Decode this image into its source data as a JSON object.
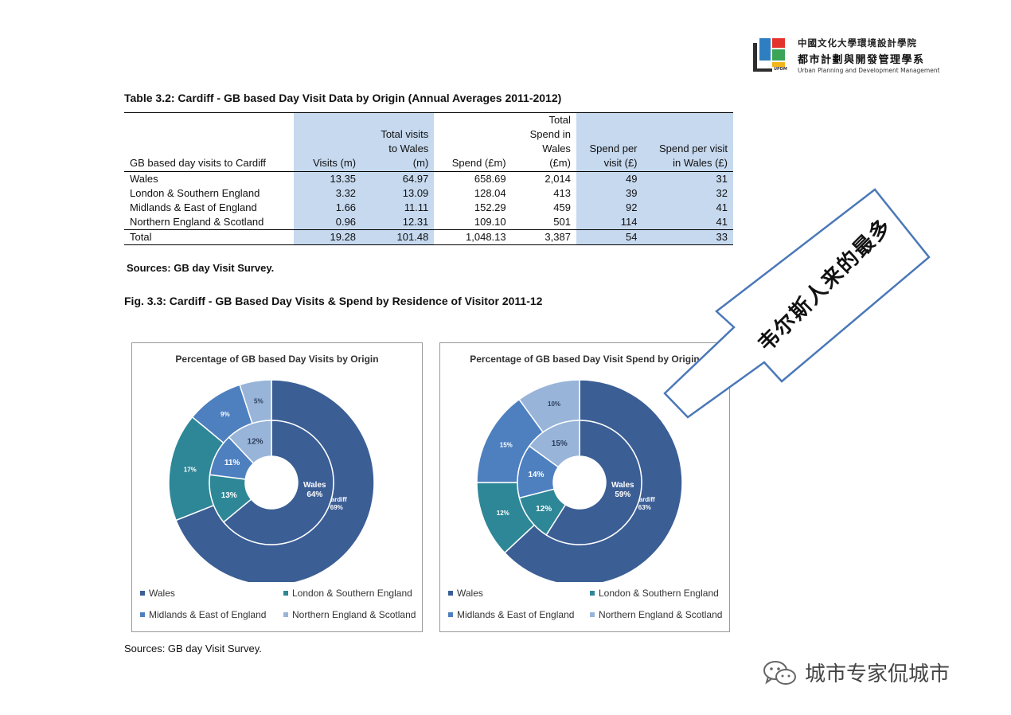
{
  "logo": {
    "line1": "中國文化大學環境設計學院",
    "line2": "都市計劃與開發管理學系",
    "line3": "Urban Planning and Development Management",
    "abbr": "UPDM"
  },
  "table": {
    "title": "Table 3.2: Cardiff - GB based Day Visit Data by Origin (Annual Averages 2011-2012)",
    "headers": [
      [
        "GB based day visits to Cardiff"
      ],
      [
        "Visits (m)"
      ],
      [
        "Total visits",
        "to Wales",
        "(m)"
      ],
      [
        "Spend (£m)"
      ],
      [
        "Total",
        "Spend in",
        "Wales",
        "(£m)"
      ],
      [
        "Spend per",
        "visit (£)"
      ],
      [
        "Spend per visit",
        "in Wales (£)"
      ]
    ],
    "rows": [
      [
        "Wales",
        "13.35",
        "64.97",
        "658.69",
        "2,014",
        "49",
        "31"
      ],
      [
        "London & Southern England",
        "3.32",
        "13.09",
        "128.04",
        "413",
        "39",
        "32"
      ],
      [
        "Midlands & East of England",
        "1.66",
        "11.11",
        "152.29",
        "459",
        "92",
        "41"
      ],
      [
        "Northern England & Scotland",
        "0.96",
        "12.31",
        "109.10",
        "501",
        "114",
        "41"
      ]
    ],
    "total": [
      "Total",
      "19.28",
      "101.48",
      "1,048.13",
      "3,387",
      "54",
      "33"
    ],
    "sources": "Sources: GB day Visit Survey."
  },
  "figure": {
    "title": "Fig. 3.3: Cardiff - GB Based Day Visits & Spend by Residence of Visitor 2011-12",
    "sources": "Sources: GB day Visit Survey."
  },
  "colors": {
    "wales": "#3b5e95",
    "london": "#2e8797",
    "midlands": "#4e80c0",
    "northern": "#98b4d9",
    "table_highlight": "#c6d9ef",
    "callout_border": "#4a78b8"
  },
  "chart_data": [
    {
      "type": "pie",
      "title": "Percentage of GB based Day Visits by Origin",
      "categories": [
        "Wales",
        "London & Southern England",
        "Midlands & East of England",
        "Northern England & Scotland"
      ],
      "series": [
        {
          "name": "Cardiff",
          "values": [
            69,
            17,
            9,
            5
          ],
          "labels": [
            "Cardiff\n69%",
            "17%",
            "9%",
            "5%"
          ]
        },
        {
          "name": "Wales",
          "values": [
            64,
            13,
            11,
            12
          ],
          "labels": [
            "Wales\n64%",
            "13%",
            "11%",
            "12%"
          ]
        }
      ],
      "legend": [
        "Wales",
        "London & Southern England",
        "Midlands & East of England",
        "Northern England & Scotland"
      ]
    },
    {
      "type": "pie",
      "title": "Percentage of GB based Day Visit Spend by Origin",
      "categories": [
        "Wales",
        "London & Southern England",
        "Midlands & East of England",
        "Northern England & Scotland"
      ],
      "series": [
        {
          "name": "Cardiff",
          "values": [
            63,
            12,
            15,
            10
          ],
          "labels": [
            "Cardiff\n63%",
            "12%",
            "15%",
            "10%"
          ]
        },
        {
          "name": "Wales",
          "values": [
            59,
            12,
            14,
            15
          ],
          "labels": [
            "Wales\n59%",
            "12%",
            "14%",
            "15%"
          ]
        }
      ],
      "legend": [
        "Wales",
        "London & Southern England",
        "Midlands & East of England",
        "Northern England & Scotland"
      ]
    }
  ],
  "callout": {
    "text": "韦尔斯人来的最多"
  },
  "watermark": {
    "text": "城市专家侃城市",
    "icon": "wechat-icon"
  }
}
